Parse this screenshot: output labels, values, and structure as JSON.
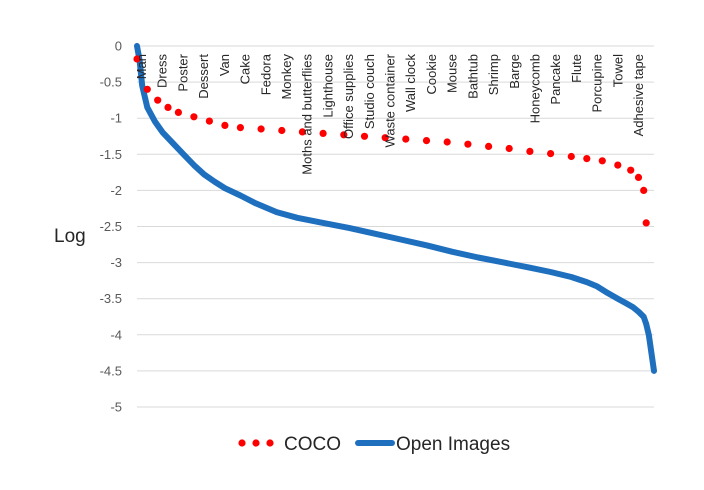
{
  "chart_data": {
    "type": "line",
    "title": "",
    "xlabel": "",
    "ylabel": "Log",
    "ylim": [
      -5,
      0
    ],
    "yticks": [
      "0",
      "-0.5",
      "-1",
      "-1.5",
      "-2",
      "-2.5",
      "-3",
      "-3.5",
      "-4",
      "-4.5",
      "-5"
    ],
    "grid": true,
    "legend": "bottom",
    "categories": [
      "Man",
      "Dress",
      "Poster",
      "Dessert",
      "Van",
      "Cake",
      "Fedora",
      "Monkey",
      "Moths and butterflies",
      "Lighthouse",
      "Office supplies",
      "Studio couch",
      "Waste container",
      "Wall clock",
      "Cookie",
      "Mouse",
      "Bathtub",
      "Shrimp",
      "Barge",
      "Honeycomb",
      "Pancake",
      "Flute",
      "Porcupine",
      "Towel",
      "Adhesive tape"
    ],
    "series": [
      {
        "name": "COCO",
        "style": "dotted",
        "color": "#ff0000",
        "x": [
          0,
          0.02,
          0.04,
          0.06,
          0.08,
          0.11,
          0.14,
          0.17,
          0.2,
          0.24,
          0.28,
          0.32,
          0.36,
          0.4,
          0.44,
          0.48,
          0.52,
          0.56,
          0.6,
          0.64,
          0.68,
          0.72,
          0.76,
          0.8,
          0.84,
          0.87,
          0.9,
          0.93,
          0.955,
          0.97,
          0.98,
          0.985
        ],
        "y": [
          -0.18,
          -0.6,
          -0.75,
          -0.85,
          -0.92,
          -0.98,
          -1.04,
          -1.1,
          -1.13,
          -1.15,
          -1.17,
          -1.19,
          -1.21,
          -1.23,
          -1.25,
          -1.27,
          -1.29,
          -1.31,
          -1.33,
          -1.36,
          -1.39,
          -1.42,
          -1.46,
          -1.49,
          -1.53,
          -1.56,
          -1.59,
          -1.65,
          -1.72,
          -1.82,
          -2.0,
          -2.45
        ]
      },
      {
        "name": "Open Images",
        "style": "solid",
        "color": "#1f6fbf",
        "x": [
          0,
          0.005,
          0.01,
          0.02,
          0.035,
          0.05,
          0.07,
          0.09,
          0.11,
          0.13,
          0.15,
          0.17,
          0.2,
          0.23,
          0.27,
          0.31,
          0.36,
          0.41,
          0.46,
          0.51,
          0.56,
          0.61,
          0.66,
          0.71,
          0.76,
          0.8,
          0.84,
          0.87,
          0.89,
          0.91,
          0.93,
          0.945,
          0.96,
          0.97,
          0.98,
          0.985,
          0.99,
          0.995,
          1.0
        ],
        "y": [
          0,
          -0.2,
          -0.55,
          -0.85,
          -1.05,
          -1.2,
          -1.35,
          -1.5,
          -1.65,
          -1.78,
          -1.88,
          -1.97,
          -2.07,
          -2.18,
          -2.3,
          -2.38,
          -2.45,
          -2.52,
          -2.6,
          -2.68,
          -2.76,
          -2.85,
          -2.93,
          -3.0,
          -3.07,
          -3.13,
          -3.2,
          -3.27,
          -3.33,
          -3.42,
          -3.5,
          -3.56,
          -3.62,
          -3.68,
          -3.75,
          -3.85,
          -4.0,
          -4.25,
          -4.5
        ]
      }
    ]
  }
}
